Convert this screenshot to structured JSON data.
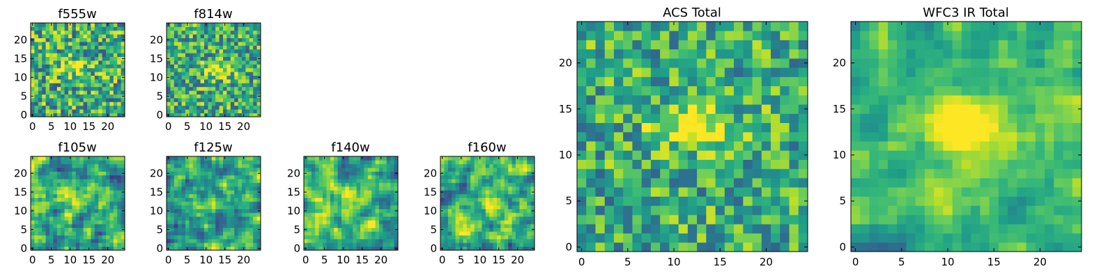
{
  "chart_data": [
    {
      "type": "heatmap",
      "title": "f555w",
      "xticks": [
        0,
        5,
        10,
        15,
        20
      ],
      "yticks": [
        0,
        5,
        10,
        15,
        20
      ],
      "xlim": [
        -0.5,
        24.5
      ],
      "ylim": [
        -0.5,
        24.5
      ],
      "grid": false,
      "seed": 11,
      "noise": 0.36,
      "smooth": 0,
      "source": {
        "x": 11,
        "y": 13,
        "sx": 3.2,
        "sy": 1.6,
        "amp": 0.28
      }
    },
    {
      "type": "heatmap",
      "title": "f814w",
      "xticks": [
        0,
        5,
        10,
        15,
        20
      ],
      "yticks": [
        0,
        5,
        10,
        15,
        20
      ],
      "xlim": [
        -0.5,
        24.5
      ],
      "ylim": [
        -0.5,
        24.5
      ],
      "grid": false,
      "seed": 23,
      "noise": 0.33,
      "smooth": 0,
      "source": {
        "x": 13,
        "y": 12,
        "sx": 2.8,
        "sy": 1.5,
        "amp": 0.45
      }
    },
    {
      "type": "heatmap",
      "title": "f105w",
      "xticks": [
        0,
        5,
        10,
        15,
        20
      ],
      "yticks": [
        0,
        5,
        10,
        15,
        20
      ],
      "xlim": [
        -0.5,
        24.5
      ],
      "ylim": [
        -0.5,
        24.5
      ],
      "grid": false,
      "seed": 37,
      "noise": 0.45,
      "smooth": 1,
      "source": {
        "x": 12,
        "y": 13,
        "sx": 2.5,
        "sy": 2.0,
        "amp": 0.3
      }
    },
    {
      "type": "heatmap",
      "title": "f125w",
      "xticks": [
        0,
        5,
        10,
        15,
        20
      ],
      "yticks": [
        0,
        5,
        10,
        15,
        20
      ],
      "xlim": [
        -0.5,
        24.5
      ],
      "ylim": [
        -0.5,
        24.5
      ],
      "grid": false,
      "seed": 41,
      "noise": 0.45,
      "smooth": 1,
      "source": {
        "x": 12,
        "y": 13,
        "sx": 2.5,
        "sy": 2.0,
        "amp": 0.2
      }
    },
    {
      "type": "heatmap",
      "title": "f140w",
      "xticks": [
        0,
        5,
        10,
        15,
        20
      ],
      "yticks": [
        0,
        5,
        10,
        15,
        20
      ],
      "xlim": [
        -0.5,
        24.5
      ],
      "ylim": [
        -0.5,
        24.5
      ],
      "grid": false,
      "seed": 53,
      "noise": 0.45,
      "smooth": 1,
      "source": {
        "x": 12,
        "y": 12,
        "sx": 2.5,
        "sy": 2.0,
        "amp": 0.2
      }
    },
    {
      "type": "heatmap",
      "title": "f160w",
      "xticks": [
        0,
        5,
        10,
        15,
        20
      ],
      "yticks": [
        0,
        5,
        10,
        15,
        20
      ],
      "xlim": [
        -0.5,
        24.5
      ],
      "ylim": [
        -0.5,
        24.5
      ],
      "grid": false,
      "seed": 67,
      "noise": 0.45,
      "smooth": 1,
      "source": {
        "x": 13,
        "y": 13,
        "sx": 2.5,
        "sy": 2.0,
        "amp": 0.2
      }
    },
    {
      "type": "heatmap",
      "title": "ACS Total",
      "xticks": [
        0,
        5,
        10,
        15,
        20
      ],
      "yticks": [
        0,
        5,
        10,
        15,
        20
      ],
      "xlim": [
        -0.5,
        24.5
      ],
      "ylim": [
        -0.5,
        24.5
      ],
      "grid": false,
      "seed": 79,
      "noise": 0.3,
      "smooth": 0,
      "source": {
        "x": 12.5,
        "y": 13,
        "sx": 3.0,
        "sy": 1.6,
        "amp": 0.5
      }
    },
    {
      "type": "heatmap",
      "title": "WFC3 IR Total",
      "xticks": [
        0,
        5,
        10,
        15,
        20
      ],
      "yticks": [
        0,
        5,
        10,
        15,
        20
      ],
      "xlim": [
        -0.5,
        24.5
      ],
      "ylim": [
        -0.5,
        24.5
      ],
      "grid": false,
      "seed": 97,
      "noise": 0.3,
      "smooth": 1,
      "source": {
        "x": 12,
        "y": 13,
        "sx": 2.5,
        "sy": 2.2,
        "amp": 0.55
      }
    }
  ]
}
